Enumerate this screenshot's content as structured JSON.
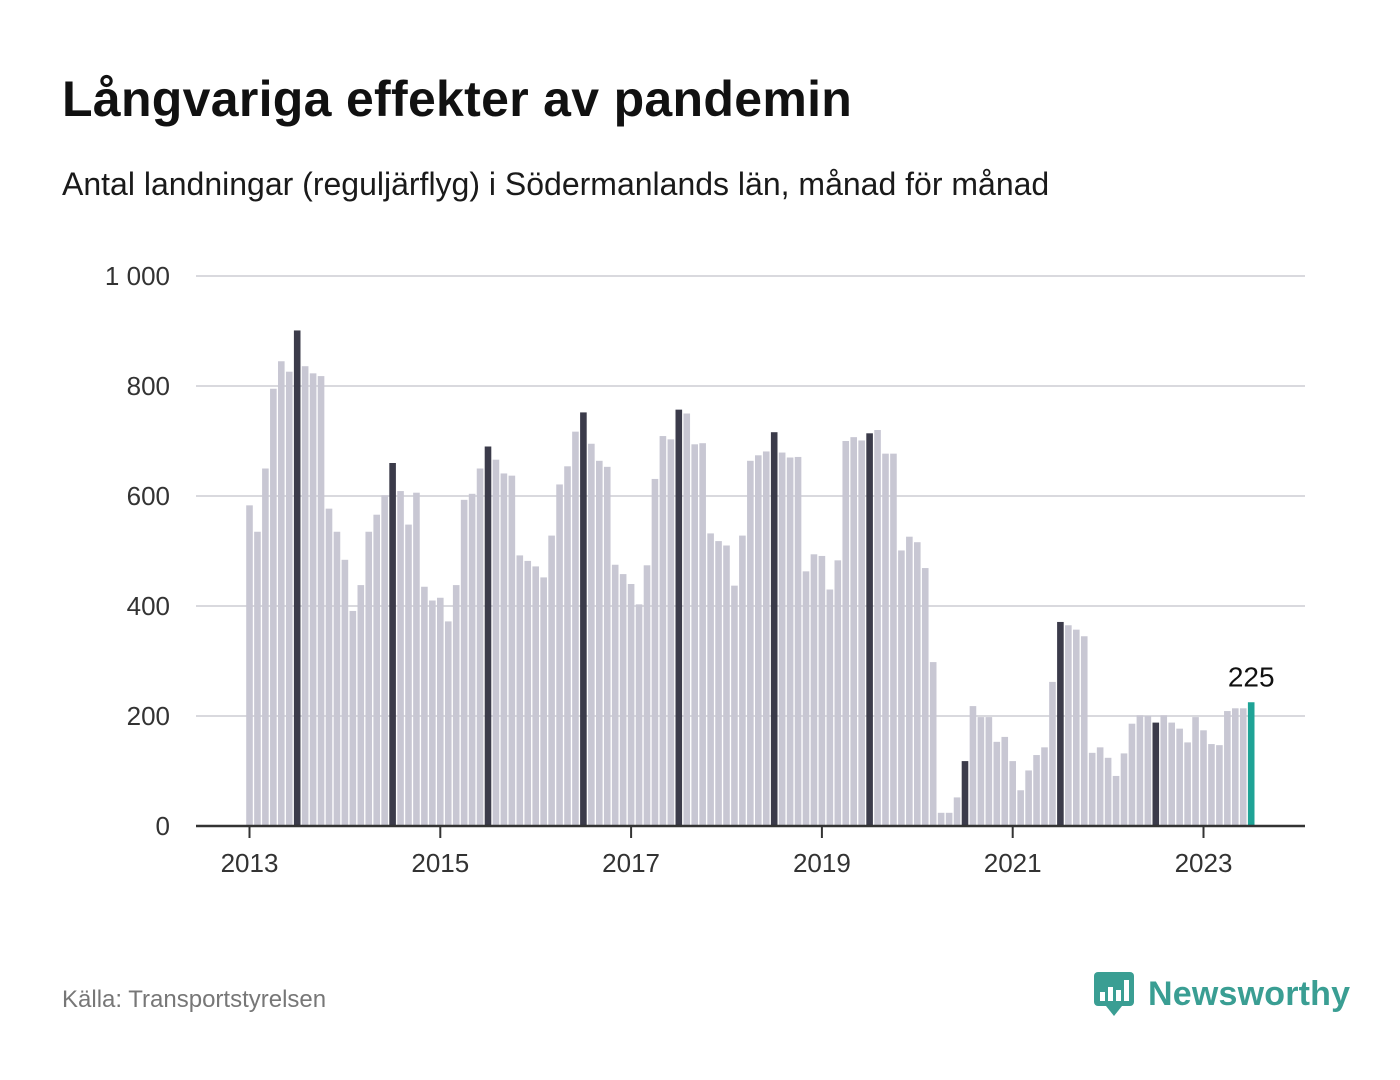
{
  "header": {
    "title": "Långvariga effekter av pandemin",
    "subtitle": "Antal landningar (reguljärflyg) i Södermanlands län, månad för månad"
  },
  "footer": {
    "source": "Källa: Transportstyrelsen",
    "brand": "Newsworthy",
    "brand_icon": "newsworthy-logo-icon"
  },
  "colors": {
    "bar_default": "#c8c7d3",
    "bar_highlight": "#3b3b4a",
    "bar_latest": "#1fa396",
    "grid": "#d9d9de",
    "axis": "#333333",
    "brand": "#3a9e93"
  },
  "chart_data": {
    "type": "bar",
    "ylim": [
      0,
      1000
    ],
    "yticks": [
      0,
      200,
      400,
      600,
      800,
      1000
    ],
    "ytick_labels": [
      "0",
      "200",
      "400",
      "600",
      "800",
      "1 000"
    ],
    "xtick_labels": [
      "2013",
      "2015",
      "2017",
      "2019",
      "2021",
      "2023"
    ],
    "xtick_years": [
      2013,
      2015,
      2017,
      2019,
      2021,
      2023
    ],
    "start": "2013-01",
    "grid": true,
    "highlight_month": "July",
    "values": [
      583,
      535,
      650,
      795,
      845,
      826,
      901,
      836,
      823,
      818,
      577,
      535,
      484,
      391,
      438,
      535,
      566,
      601,
      660,
      609,
      548,
      606,
      435,
      410,
      415,
      372,
      438,
      593,
      604,
      650,
      690,
      666,
      641,
      637,
      492,
      482,
      472,
      452,
      528,
      621,
      654,
      717,
      752,
      695,
      664,
      653,
      475,
      458,
      440,
      403,
      474,
      631,
      709,
      703,
      757,
      750,
      694,
      696,
      532,
      518,
      510,
      437,
      528,
      664,
      674,
      681,
      716,
      679,
      670,
      671,
      463,
      494,
      491,
      430,
      483,
      700,
      707,
      701,
      714,
      720,
      677,
      677,
      501,
      526,
      516,
      469,
      298,
      24,
      24,
      52,
      118,
      218,
      198,
      198,
      153,
      162,
      118,
      65,
      101,
      129,
      143,
      262,
      371,
      365,
      357,
      345,
      133,
      143,
      124,
      91,
      132,
      186,
      201,
      200,
      188,
      201,
      188,
      177,
      152,
      198,
      174,
      149,
      147,
      209,
      214,
      214,
      225
    ],
    "latest_value_label": "225"
  }
}
